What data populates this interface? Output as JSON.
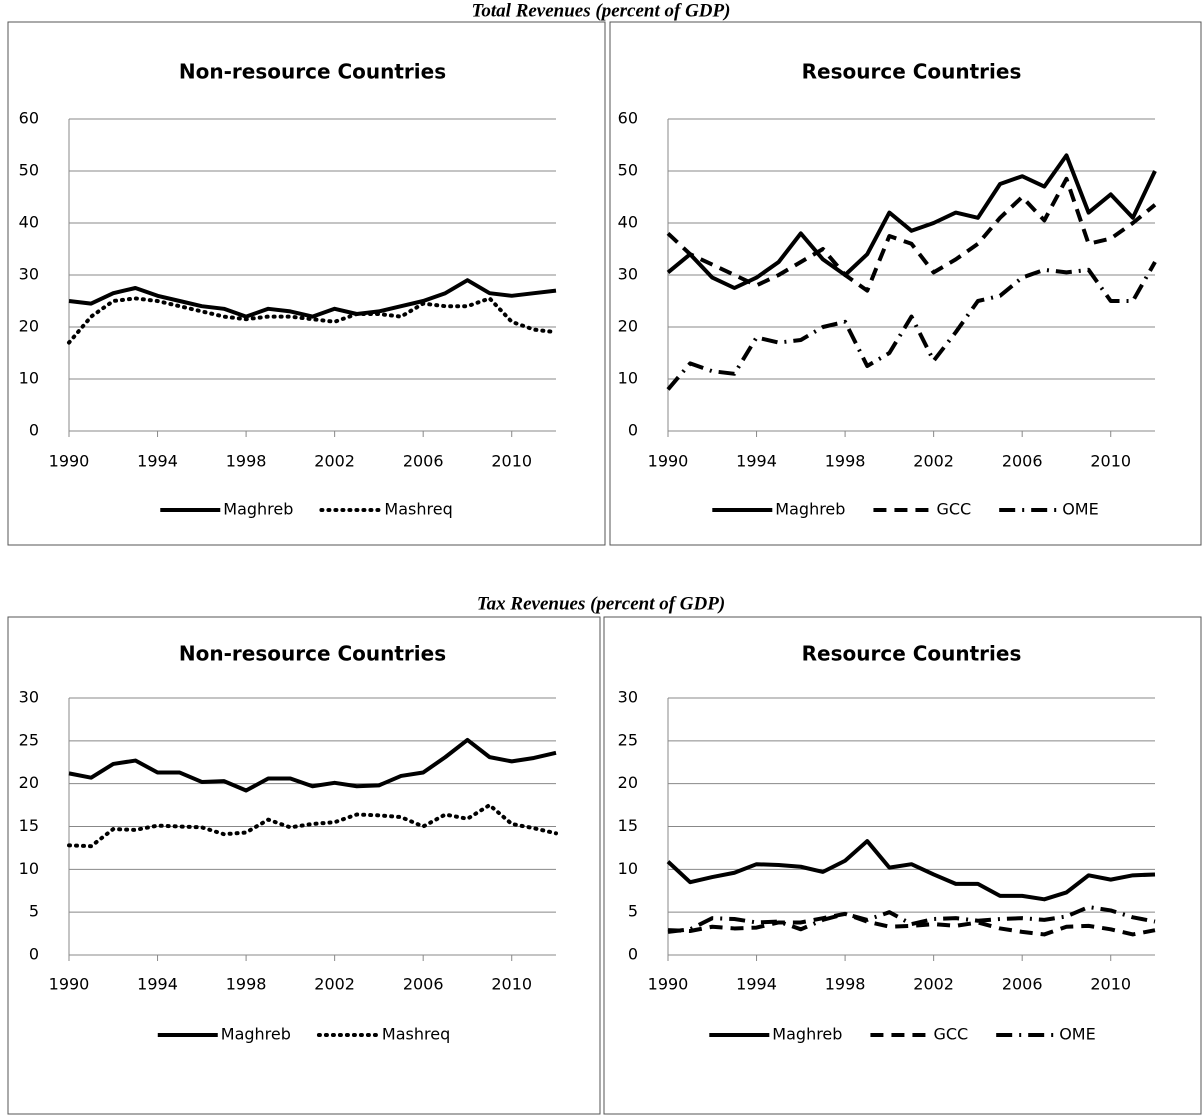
{
  "section_titles": [
    "Total Revenues (percent of GDP)",
    "Tax Revenues (percent of GDP)"
  ],
  "chart_data": [
    {
      "type": "line",
      "title": "Non-resource Countries",
      "x": [
        1990,
        1991,
        1992,
        1993,
        1994,
        1995,
        1996,
        1997,
        1998,
        1999,
        2000,
        2001,
        2002,
        2003,
        2004,
        2005,
        2006,
        2007,
        2008,
        2009,
        2010,
        2011,
        2012
      ],
      "xlim": [
        1990,
        2012
      ],
      "xticks": [
        1990,
        1994,
        1998,
        2002,
        2006,
        2010
      ],
      "ylim": [
        0,
        60
      ],
      "yticks": [
        0,
        10,
        20,
        30,
        40,
        50,
        60
      ],
      "grid": true,
      "legend": "bottom",
      "series": [
        {
          "name": "Maghreb",
          "color": "#000000",
          "style": "solid",
          "values": [
            25,
            24.5,
            26.5,
            27.5,
            26,
            25,
            24,
            23.5,
            22,
            23.5,
            23,
            22,
            23.5,
            22.5,
            23,
            24,
            25,
            26.5,
            29,
            26.5,
            26,
            26.5,
            27
          ]
        },
        {
          "name": "Mashreq",
          "color": "#000000",
          "style": "dotted",
          "values": [
            17,
            22,
            25,
            25.5,
            25,
            24,
            23,
            22,
            21.5,
            22,
            22,
            21.5,
            21,
            22.5,
            22.5,
            22,
            24.5,
            24,
            24,
            25.5,
            21,
            19.5,
            19
          ]
        }
      ]
    },
    {
      "type": "line",
      "title": "Resource Countries",
      "x": [
        1990,
        1991,
        1992,
        1993,
        1994,
        1995,
        1996,
        1997,
        1998,
        1999,
        2000,
        2001,
        2002,
        2003,
        2004,
        2005,
        2006,
        2007,
        2008,
        2009,
        2010,
        2011,
        2012
      ],
      "xlim": [
        1990,
        2012
      ],
      "xticks": [
        1990,
        1994,
        1998,
        2002,
        2006,
        2010
      ],
      "ylim": [
        0,
        60
      ],
      "yticks": [
        0,
        10,
        20,
        30,
        40,
        50,
        60
      ],
      "grid": true,
      "legend": "bottom",
      "series": [
        {
          "name": "Maghreb",
          "color": "#000000",
          "style": "solid",
          "values": [
            30.5,
            34,
            29.5,
            27.5,
            29.5,
            32.5,
            38,
            33,
            30,
            34,
            42,
            38.5,
            40,
            42,
            41,
            47.5,
            49,
            47,
            53,
            42,
            45.5,
            41,
            50
          ]
        },
        {
          "name": "GCC",
          "color": "#000000",
          "style": "dashed",
          "values": [
            38,
            34,
            32,
            30,
            28,
            30,
            32.5,
            35,
            30,
            27,
            37.5,
            36,
            30.5,
            33,
            36,
            41,
            45,
            40.5,
            48.5,
            36,
            37,
            40,
            43.5
          ]
        },
        {
          "name": "OME",
          "color": "#000000",
          "style": "dashdot",
          "values": [
            8,
            13,
            11.5,
            11,
            18,
            17,
            17.5,
            20,
            21,
            12.5,
            15,
            22,
            13.5,
            19,
            25,
            26,
            29.5,
            31,
            30.5,
            31,
            25,
            25,
            32.5
          ]
        }
      ]
    },
    {
      "type": "line",
      "title": "Non-resource Countries",
      "x": [
        1990,
        1991,
        1992,
        1993,
        1994,
        1995,
        1996,
        1997,
        1998,
        1999,
        2000,
        2001,
        2002,
        2003,
        2004,
        2005,
        2006,
        2007,
        2008,
        2009,
        2010,
        2011,
        2012
      ],
      "xlim": [
        1990,
        2012
      ],
      "xticks": [
        1990,
        1994,
        1998,
        2002,
        2006,
        2010
      ],
      "ylim": [
        0,
        30
      ],
      "yticks": [
        0,
        5,
        10,
        15,
        20,
        25,
        30
      ],
      "grid": true,
      "legend": "bottom",
      "series": [
        {
          "name": "Maghreb",
          "color": "#000000",
          "style": "solid",
          "values": [
            21.2,
            20.7,
            22.3,
            22.7,
            21.3,
            21.3,
            20.2,
            20.3,
            19.2,
            20.6,
            20.6,
            19.7,
            20.1,
            19.7,
            19.8,
            20.9,
            21.3,
            23.1,
            25.1,
            23.1,
            22.6,
            23,
            23.6
          ]
        },
        {
          "name": "Mashreq",
          "color": "#000000",
          "style": "dotted",
          "values": [
            12.8,
            12.7,
            14.7,
            14.6,
            15.1,
            15,
            14.9,
            14.1,
            14.3,
            15.8,
            14.9,
            15.3,
            15.5,
            16.4,
            16.3,
            16.1,
            15,
            16.4,
            15.9,
            17.5,
            15.3,
            14.8,
            14.2
          ]
        }
      ]
    },
    {
      "type": "line",
      "title": "Resource Countries",
      "x": [
        1990,
        1991,
        1992,
        1993,
        1994,
        1995,
        1996,
        1997,
        1998,
        1999,
        2000,
        2001,
        2002,
        2003,
        2004,
        2005,
        2006,
        2007,
        2008,
        2009,
        2010,
        2011,
        2012
      ],
      "xlim": [
        1990,
        2012
      ],
      "xticks": [
        1990,
        1994,
        1998,
        2002,
        2006,
        2010
      ],
      "ylim": [
        0,
        30
      ],
      "yticks": [
        0,
        5,
        10,
        15,
        20,
        25,
        30
      ],
      "grid": true,
      "legend": "bottom",
      "series": [
        {
          "name": "Maghreb",
          "color": "#000000",
          "style": "solid",
          "values": [
            10.9,
            8.5,
            9.1,
            9.6,
            10.6,
            10.5,
            10.3,
            9.7,
            11,
            13.3,
            10.2,
            10.6,
            9.4,
            8.3,
            8.3,
            6.9,
            6.9,
            6.5,
            7.3,
            9.3,
            8.8,
            9.3,
            9.4
          ]
        },
        {
          "name": "GCC",
          "color": "#000000",
          "style": "dashed",
          "values": [
            2.9,
            2.8,
            3.3,
            3.1,
            3.2,
            3.8,
            3.8,
            4.3,
            4.8,
            3.9,
            3.3,
            3.4,
            3.6,
            3.4,
            3.8,
            3.1,
            2.7,
            2.4,
            3.3,
            3.4,
            3,
            2.4,
            2.9
          ]
        },
        {
          "name": "OME",
          "color": "#000000",
          "style": "dashdot",
          "values": [
            2.7,
            3,
            4.3,
            4.2,
            3.8,
            3.9,
            3,
            4.1,
            4.8,
            4.1,
            5,
            3.6,
            4.2,
            4.3,
            4,
            4.2,
            4.3,
            4.1,
            4.5,
            5.6,
            5.2,
            4.4,
            3.9
          ]
        }
      ]
    }
  ]
}
